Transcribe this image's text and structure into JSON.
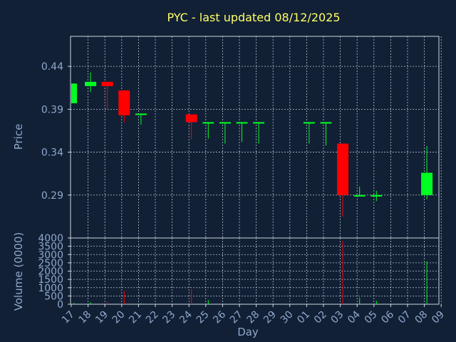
{
  "chart_data": {
    "type": "candlestick",
    "title": "PYC - last updated 08/12/2025",
    "xlabel": "Day",
    "price_panel": {
      "ylabel": "Price",
      "ylim": [
        0.24,
        0.475
      ],
      "yticks": [
        "0.44",
        "0.39",
        "0.34",
        "0.29"
      ],
      "ytick_values": [
        0.44,
        0.39,
        0.34,
        0.29
      ]
    },
    "volume_panel": {
      "ylabel": "Volume (0000)",
      "ylim": [
        0,
        4000
      ],
      "yticks": [
        "4000",
        "3500",
        "3000",
        "2500",
        "2000",
        "1500",
        "1000",
        "500",
        "0"
      ],
      "ytick_values": [
        4000,
        3500,
        3000,
        2500,
        2000,
        1500,
        1000,
        500,
        0
      ]
    },
    "x_ticks": [
      "17",
      "18",
      "19",
      "20",
      "21",
      "22",
      "23",
      "24",
      "25",
      "26",
      "27",
      "28",
      "29",
      "30",
      "01",
      "02",
      "03",
      "04",
      "05",
      "06",
      "07",
      "08",
      "09"
    ],
    "up_color": "#00ff22",
    "down_color": "#ff0000",
    "candles": [
      {
        "day": "17",
        "open": 0.397,
        "high": 0.42,
        "low": 0.397,
        "close": 0.42,
        "volume": 80
      },
      {
        "day": "18",
        "open": 0.417,
        "high": 0.433,
        "low": 0.41,
        "close": 0.422,
        "volume": 120
      },
      {
        "day": "19",
        "open": 0.422,
        "high": 0.422,
        "low": 0.39,
        "close": 0.417,
        "volume": 150
      },
      {
        "day": "20",
        "open": 0.412,
        "high": 0.412,
        "low": 0.375,
        "close": 0.383,
        "volume": 800
      },
      {
        "day": "21",
        "open": 0.384,
        "high": 0.385,
        "low": 0.372,
        "close": 0.385,
        "volume": 60
      },
      {
        "day": "24",
        "open": 0.384,
        "high": 0.384,
        "low": 0.355,
        "close": 0.375,
        "volume": 900
      },
      {
        "day": "25",
        "open": 0.375,
        "high": 0.375,
        "low": 0.356,
        "close": 0.375,
        "volume": 250
      },
      {
        "day": "26",
        "open": 0.375,
        "high": 0.375,
        "low": 0.35,
        "close": 0.375,
        "volume": 40
      },
      {
        "day": "27",
        "open": 0.375,
        "high": 0.375,
        "low": 0.352,
        "close": 0.375,
        "volume": 40
      },
      {
        "day": "28",
        "open": 0.375,
        "high": 0.375,
        "low": 0.35,
        "close": 0.375,
        "volume": 40
      },
      {
        "day": "01",
        "open": 0.375,
        "high": 0.375,
        "low": 0.35,
        "close": 0.375,
        "volume": 40
      },
      {
        "day": "02",
        "open": 0.375,
        "high": 0.375,
        "low": 0.348,
        "close": 0.375,
        "volume": 40
      },
      {
        "day": "03",
        "open": 0.35,
        "high": 0.35,
        "low": 0.265,
        "close": 0.29,
        "volume": 3800
      },
      {
        "day": "04",
        "open": 0.289,
        "high": 0.3,
        "low": 0.289,
        "close": 0.29,
        "volume": 400
      },
      {
        "day": "05",
        "open": 0.29,
        "high": 0.295,
        "low": 0.283,
        "close": 0.29,
        "volume": 200
      },
      {
        "day": "08",
        "open": 0.29,
        "high": 0.347,
        "low": 0.285,
        "close": 0.316,
        "volume": 2600
      }
    ]
  }
}
